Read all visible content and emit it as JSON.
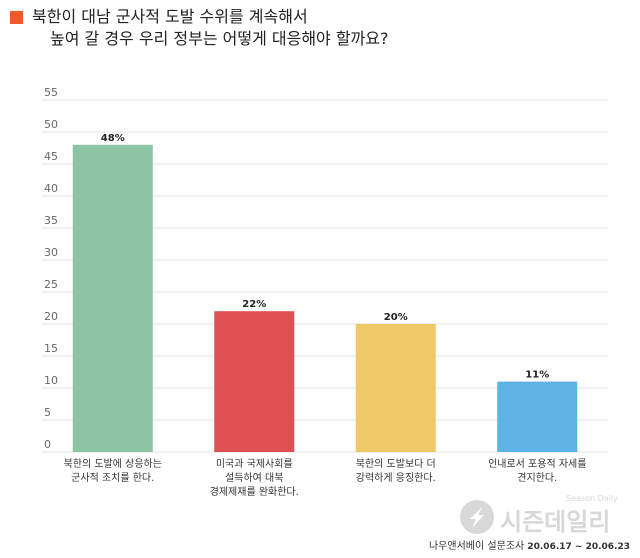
{
  "title": {
    "line1": "북한이 대남 군사적 도발 수위를 계속해서",
    "line2": "높여 갈 경우 우리 정부는 어떻게 대응해야 할까요?"
  },
  "colors": {
    "title_marker": "#f05a28",
    "grid": "#e0e0e0",
    "bars": [
      "#8cc4a5",
      "#de5051",
      "#efc967",
      "#5cb3e4"
    ]
  },
  "chart_data": {
    "type": "bar",
    "categories": [
      [
        "북한의 도발에 상응하는",
        "군사적 조치를 한다."
      ],
      [
        "미국과 국제사회를",
        "설득하여 대북",
        "경제제재를 완화한다."
      ],
      [
        "북한의 도발보다 더",
        "강력하게 응징한다."
      ],
      [
        "인내로서 포용적 자세를",
        "견지한다."
      ]
    ],
    "values": [
      48,
      22,
      20,
      11
    ],
    "value_labels": [
      "48%",
      "22%",
      "20%",
      "11%"
    ],
    "ylim": [
      0,
      55
    ],
    "yticks": [
      0,
      5,
      10,
      15,
      20,
      25,
      30,
      35,
      40,
      45,
      50,
      55
    ],
    "grid": true,
    "xlabel": "",
    "ylabel": ""
  },
  "watermark": {
    "name": "시즌데일리",
    "name_en": "Season Daily"
  },
  "source": {
    "text": "나우앤서베이 설문조사",
    "dates": "20.06.17 ~ 20.06.23"
  }
}
